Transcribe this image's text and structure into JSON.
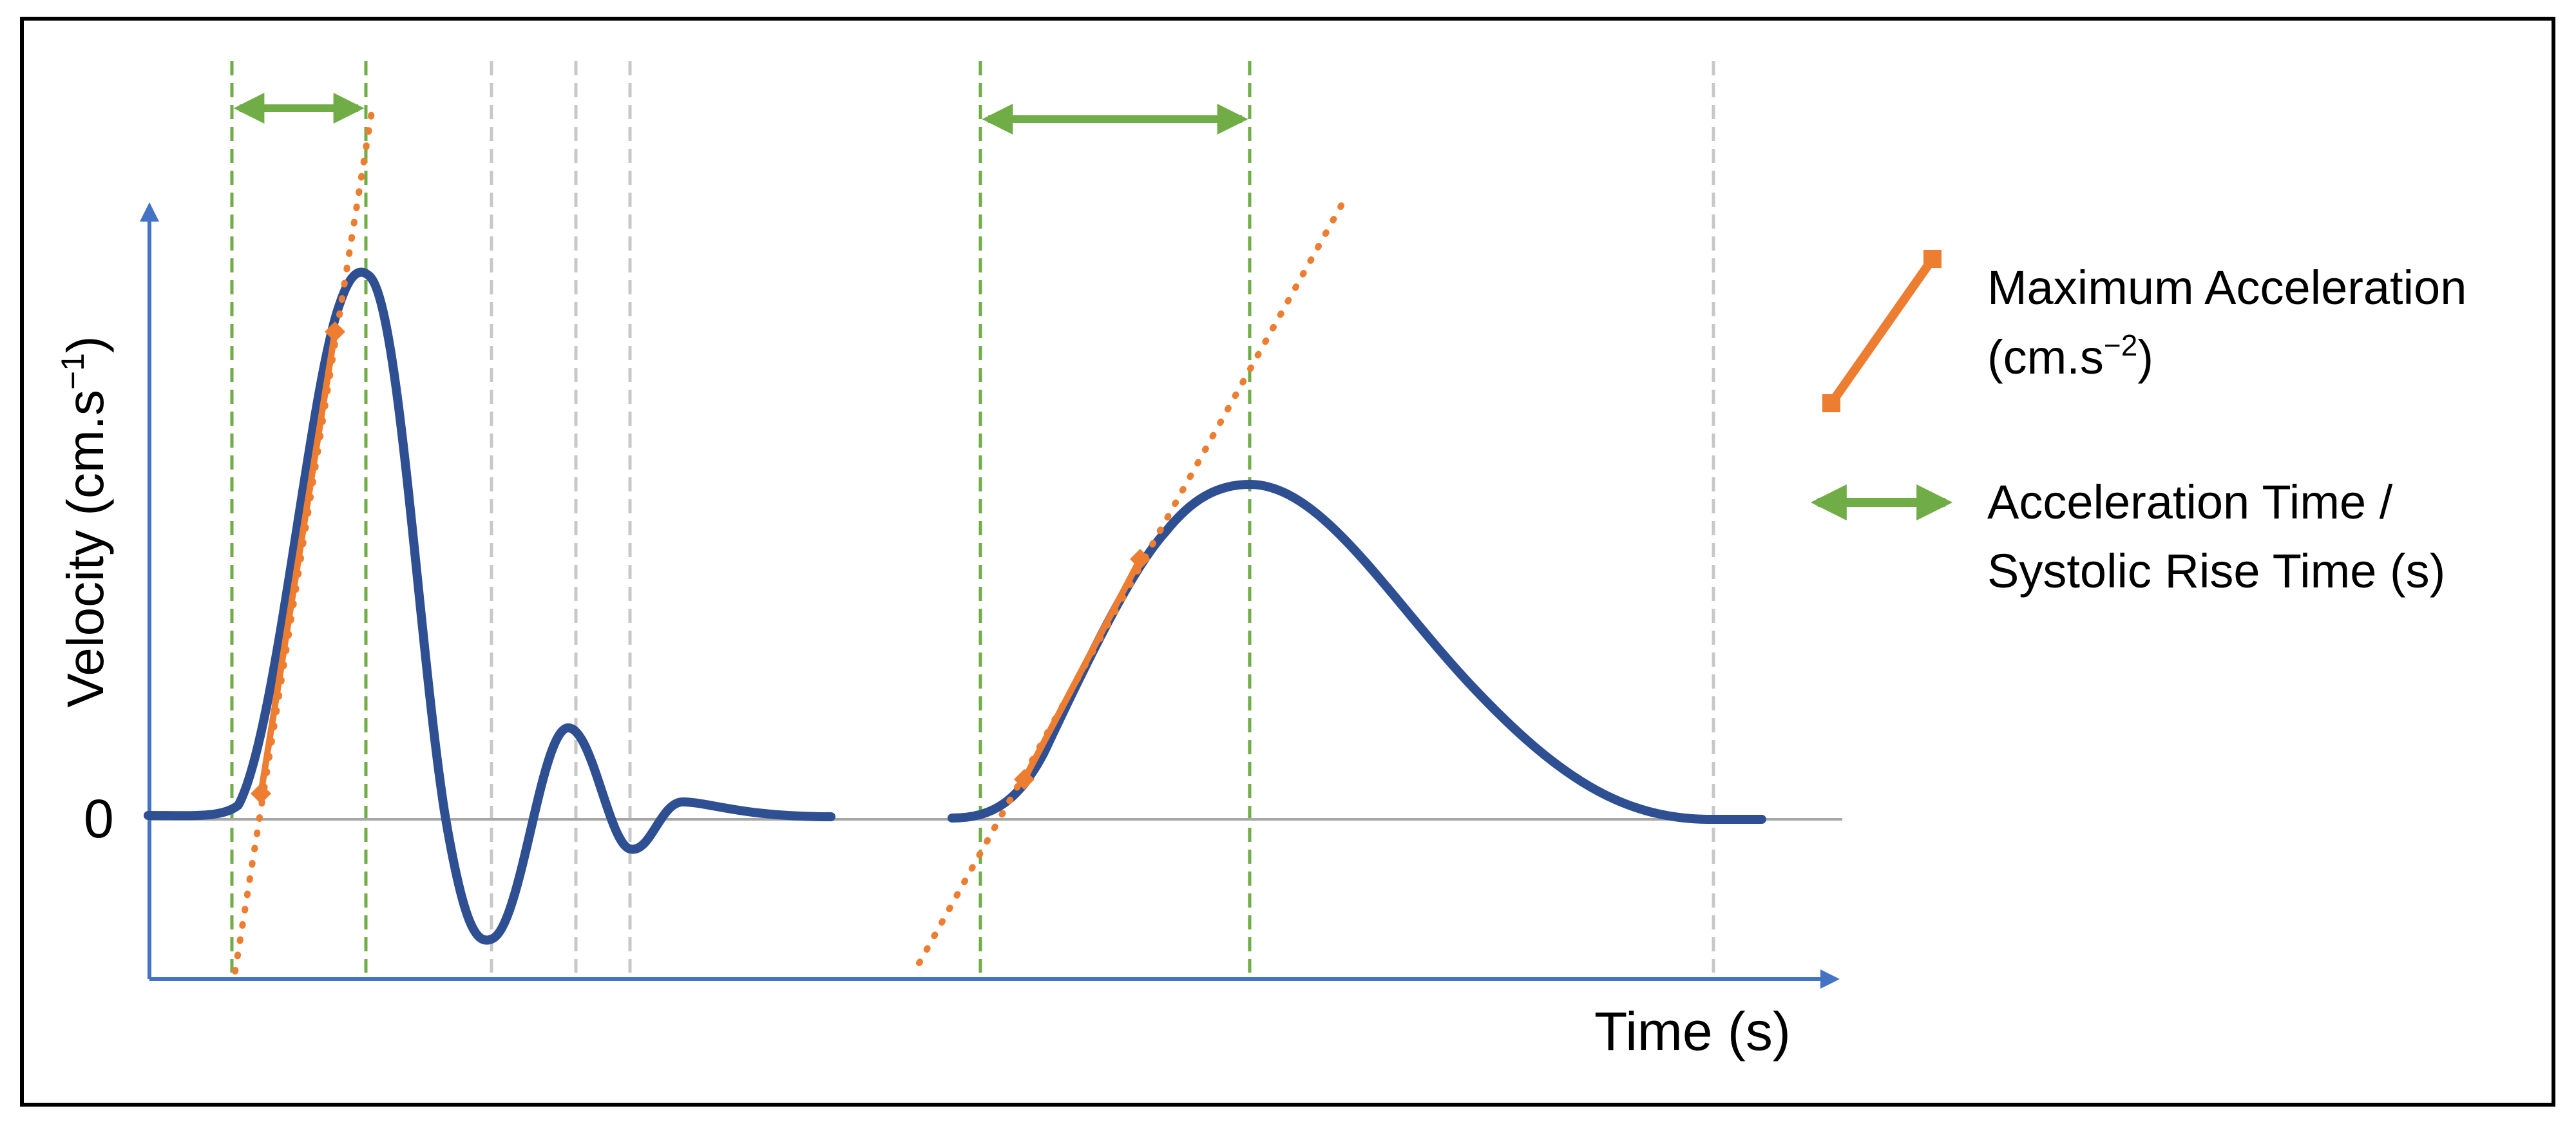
{
  "axes": {
    "y_label": "Velocity (cm.s",
    "y_label_sup": "−1",
    "y_label_close": ")",
    "x_label": "Time (s)",
    "zero_label": "0"
  },
  "legend": {
    "acceleration": {
      "line1": "Maximum Acceleration",
      "line2": "(cm.s",
      "line2_sup": "−2",
      "line2_close": ")"
    },
    "time": {
      "line1": "Acceleration Time /",
      "line2": "Systolic Rise Time (s)"
    }
  },
  "colors": {
    "waveform": "#2F4F93",
    "tangent": "#ED7D31",
    "time_arrow": "#70AD47",
    "axis": "#4472C4",
    "guide": "#C8C8C8",
    "baseline": "#A6A6A6",
    "border": "#000000"
  },
  "icons": {
    "acceleration": "orange-line-icon",
    "time": "double-arrow-icon"
  }
}
